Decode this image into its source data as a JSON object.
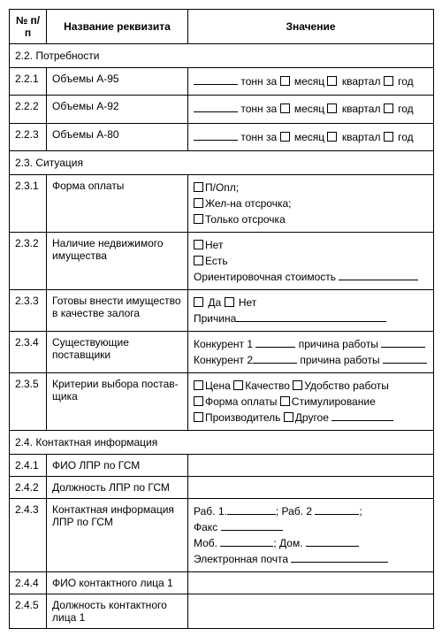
{
  "headers": {
    "num": "№ п/п",
    "name": "Название реквизита",
    "value": "Значение"
  },
  "sections": {
    "s22_title": "2.2. Потребности",
    "s22": {
      "r1_num": "2.2.1",
      "r1_name": "Объемы А-95",
      "r2_num": "2.2.2",
      "r2_name": "Объемы А-92",
      "r3_num": "2.2.3",
      "r3_name": "Объемы А-80",
      "tonn_za": "тонн за",
      "month": "месяц",
      "quarter": "квартал",
      "year": "год"
    },
    "s23_title": "2.3. Ситуация",
    "s23": {
      "r1_num": "2.3.1",
      "r1_name": "Форма оплаты",
      "r1_opt1": "П/Опл;",
      "r1_opt2": "Жел-на отсрочка;",
      "r1_opt3": "Только отсрочка",
      "r2_num": "2.3.2",
      "r2_name": "Наличие недвижимого имущества",
      "r2_opt1": "Нет",
      "r2_opt2": "Есть",
      "r2_opt3": "Ориентировочная стоимость",
      "r3_num": "2.3.3",
      "r3_name": "Готовы внести имущество в качестве залога",
      "r3_yes": "Да",
      "r3_no": "Нет",
      "r3_reason": "Причина",
      "r4_num": "2.3.4",
      "r4_name": "Существующие поставщики",
      "r4_k1": "Конкурент 1",
      "r4_k2": "Конкурент 2",
      "r4_reason": "причина работы",
      "r5_num": "2.3.5",
      "r5_name": "Критерии выбора постав­щика",
      "r5_o1": "Цена",
      "r5_o2": "Качество",
      "r5_o3": "Удобство работы",
      "r5_o4": "Форма оплаты",
      "r5_o5": "Стимулирование",
      "r5_o6": "Производитель",
      "r5_o7": "Другое"
    },
    "s24_title": "2.4. Контактная информация",
    "s24": {
      "r1_num": "2.4.1",
      "r1_name": "ФИО ЛПР по ГСМ",
      "r2_num": "2.4.2",
      "r2_name": "Должность ЛПР по ГСМ",
      "r3_num": "2.4.3",
      "r3_name": "Контактная информация ЛПР по ГСМ",
      "r3_rab1": "Раб. 1.",
      "r3_rab2": "; Раб. 2",
      "r3_fax": "Факс",
      "r3_mob": "Моб.",
      "r3_dom": "; Дом.",
      "r3_email": "Электронная почта",
      "r4_num": "2.4.4",
      "r4_name": "ФИО контактного лица 1",
      "r5_num": "2.4.5",
      "r5_name": "Должность контактного лица 1"
    }
  }
}
